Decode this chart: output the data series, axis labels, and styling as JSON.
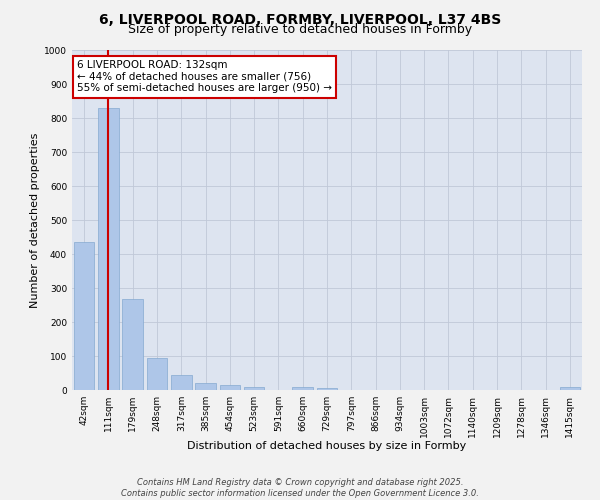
{
  "title_line1": "6, LIVERPOOL ROAD, FORMBY, LIVERPOOL, L37 4BS",
  "title_line2": "Size of property relative to detached houses in Formby",
  "xlabel": "Distribution of detached houses by size in Formby",
  "ylabel": "Number of detached properties",
  "bar_labels": [
    "42sqm",
    "111sqm",
    "179sqm",
    "248sqm",
    "317sqm",
    "385sqm",
    "454sqm",
    "523sqm",
    "591sqm",
    "660sqm",
    "729sqm",
    "797sqm",
    "866sqm",
    "934sqm",
    "1003sqm",
    "1072sqm",
    "1140sqm",
    "1209sqm",
    "1278sqm",
    "1346sqm",
    "1415sqm"
  ],
  "bar_values": [
    435,
    830,
    268,
    95,
    45,
    20,
    15,
    10,
    0,
    10,
    5,
    0,
    0,
    0,
    0,
    0,
    0,
    0,
    0,
    0,
    8
  ],
  "bar_color": "#aec6e8",
  "bar_edge_color": "#85a9d0",
  "vline_x": 1,
  "vline_color": "#cc0000",
  "annotation_text": "6 LIVERPOOL ROAD: 132sqm\n← 44% of detached houses are smaller (756)\n55% of semi-detached houses are larger (950) →",
  "annotation_box_color": "#ffffff",
  "annotation_box_edge": "#cc0000",
  "ylim": [
    0,
    1000
  ],
  "yticks": [
    0,
    100,
    200,
    300,
    400,
    500,
    600,
    700,
    800,
    900,
    1000
  ],
  "grid_color": "#c0c8d8",
  "bg_color": "#dde4f0",
  "fig_bg_color": "#f2f2f2",
  "footer_text": "Contains HM Land Registry data © Crown copyright and database right 2025.\nContains public sector information licensed under the Open Government Licence 3.0.",
  "title_fontsize": 10,
  "subtitle_fontsize": 9,
  "axis_label_fontsize": 8,
  "tick_fontsize": 6.5,
  "annotation_fontsize": 7.5,
  "footer_fontsize": 6
}
